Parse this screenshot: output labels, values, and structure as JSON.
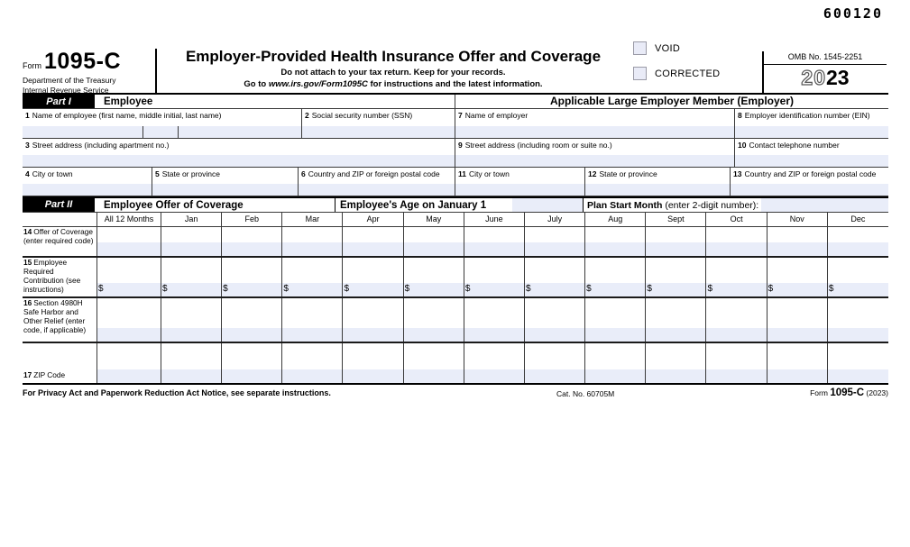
{
  "serial": "600120",
  "colors": {
    "input_shade": "#e9edf9",
    "accent_black": "#000000",
    "checkbox_fill": "#e9ebf7"
  },
  "header": {
    "form_word": "Form",
    "form_number": "1095-C",
    "dept_line1": "Department of the Treasury",
    "dept_line2": "Internal Revenue Service",
    "title": "Employer-Provided Health Insurance Offer and Coverage",
    "subtitle1": "Do not attach to your tax return. Keep for your records.",
    "subtitle2_prefix": "Go to ",
    "subtitle2_link": "www.irs.gov/Form1095C",
    "subtitle2_suffix": " for instructions and the latest information.",
    "void_label": "VOID",
    "corrected_label": "CORRECTED",
    "omb": "OMB No. 1545-2251",
    "year_outline": "20",
    "year_bold": "23"
  },
  "part1": {
    "badge": "Part I",
    "left_title": "Employee",
    "right_title": "Applicable Large Employer Member (Employer)",
    "f1_num": "1",
    "f1": "Name of employee (first name, middle initial, last name)",
    "f2_num": "2",
    "f2": "Social security number (SSN)",
    "f3_num": "3",
    "f3": "Street address (including apartment no.)",
    "f4_num": "4",
    "f4": "City or town",
    "f5_num": "5",
    "f5": "State or province",
    "f6_num": "6",
    "f6": "Country and ZIP or foreign postal code",
    "f7_num": "7",
    "f7": "Name of employer",
    "f8_num": "8",
    "f8": "Employer identification number (EIN)",
    "f9_num": "9",
    "f9": "Street address (including room or suite no.)",
    "f10_num": "10",
    "f10": "Contact telephone number",
    "f11_num": "11",
    "f11": "City or town",
    "f12_num": "12",
    "f12": "State or province",
    "f13_num": "13",
    "f13": "Country and ZIP or foreign postal code"
  },
  "part2": {
    "badge": "Part II",
    "offer_title": "Employee Offer of Coverage",
    "age_title": "Employee's Age on January 1",
    "plan_title_bold": "Plan Start Month",
    "plan_title_rest": " (enter 2-digit number):"
  },
  "table": {
    "columns": [
      "All 12 Months",
      "Jan",
      "Feb",
      "Mar",
      "Apr",
      "May",
      "June",
      "July",
      "Aug",
      "Sept",
      "Oct",
      "Nov",
      "Dec"
    ],
    "rows": [
      {
        "num": "14",
        "label": "Offer of Coverage (enter required code)",
        "currency": ""
      },
      {
        "num": "15",
        "label": "Employee Required Contribution (see instructions)",
        "currency": "$"
      },
      {
        "num": "16",
        "label": "Section 4980H Safe Harbor and Other Relief (enter code, if applicable)",
        "currency": ""
      },
      {
        "num": "17",
        "label": "ZIP Code",
        "currency": ""
      }
    ]
  },
  "footer": {
    "privacy": "For Privacy Act and Paperwork Reduction Act Notice, see separate instructions.",
    "cat": "Cat. No. 60705M",
    "form_word": "Form",
    "form_number": "1095-C",
    "form_year": "(2023)"
  }
}
